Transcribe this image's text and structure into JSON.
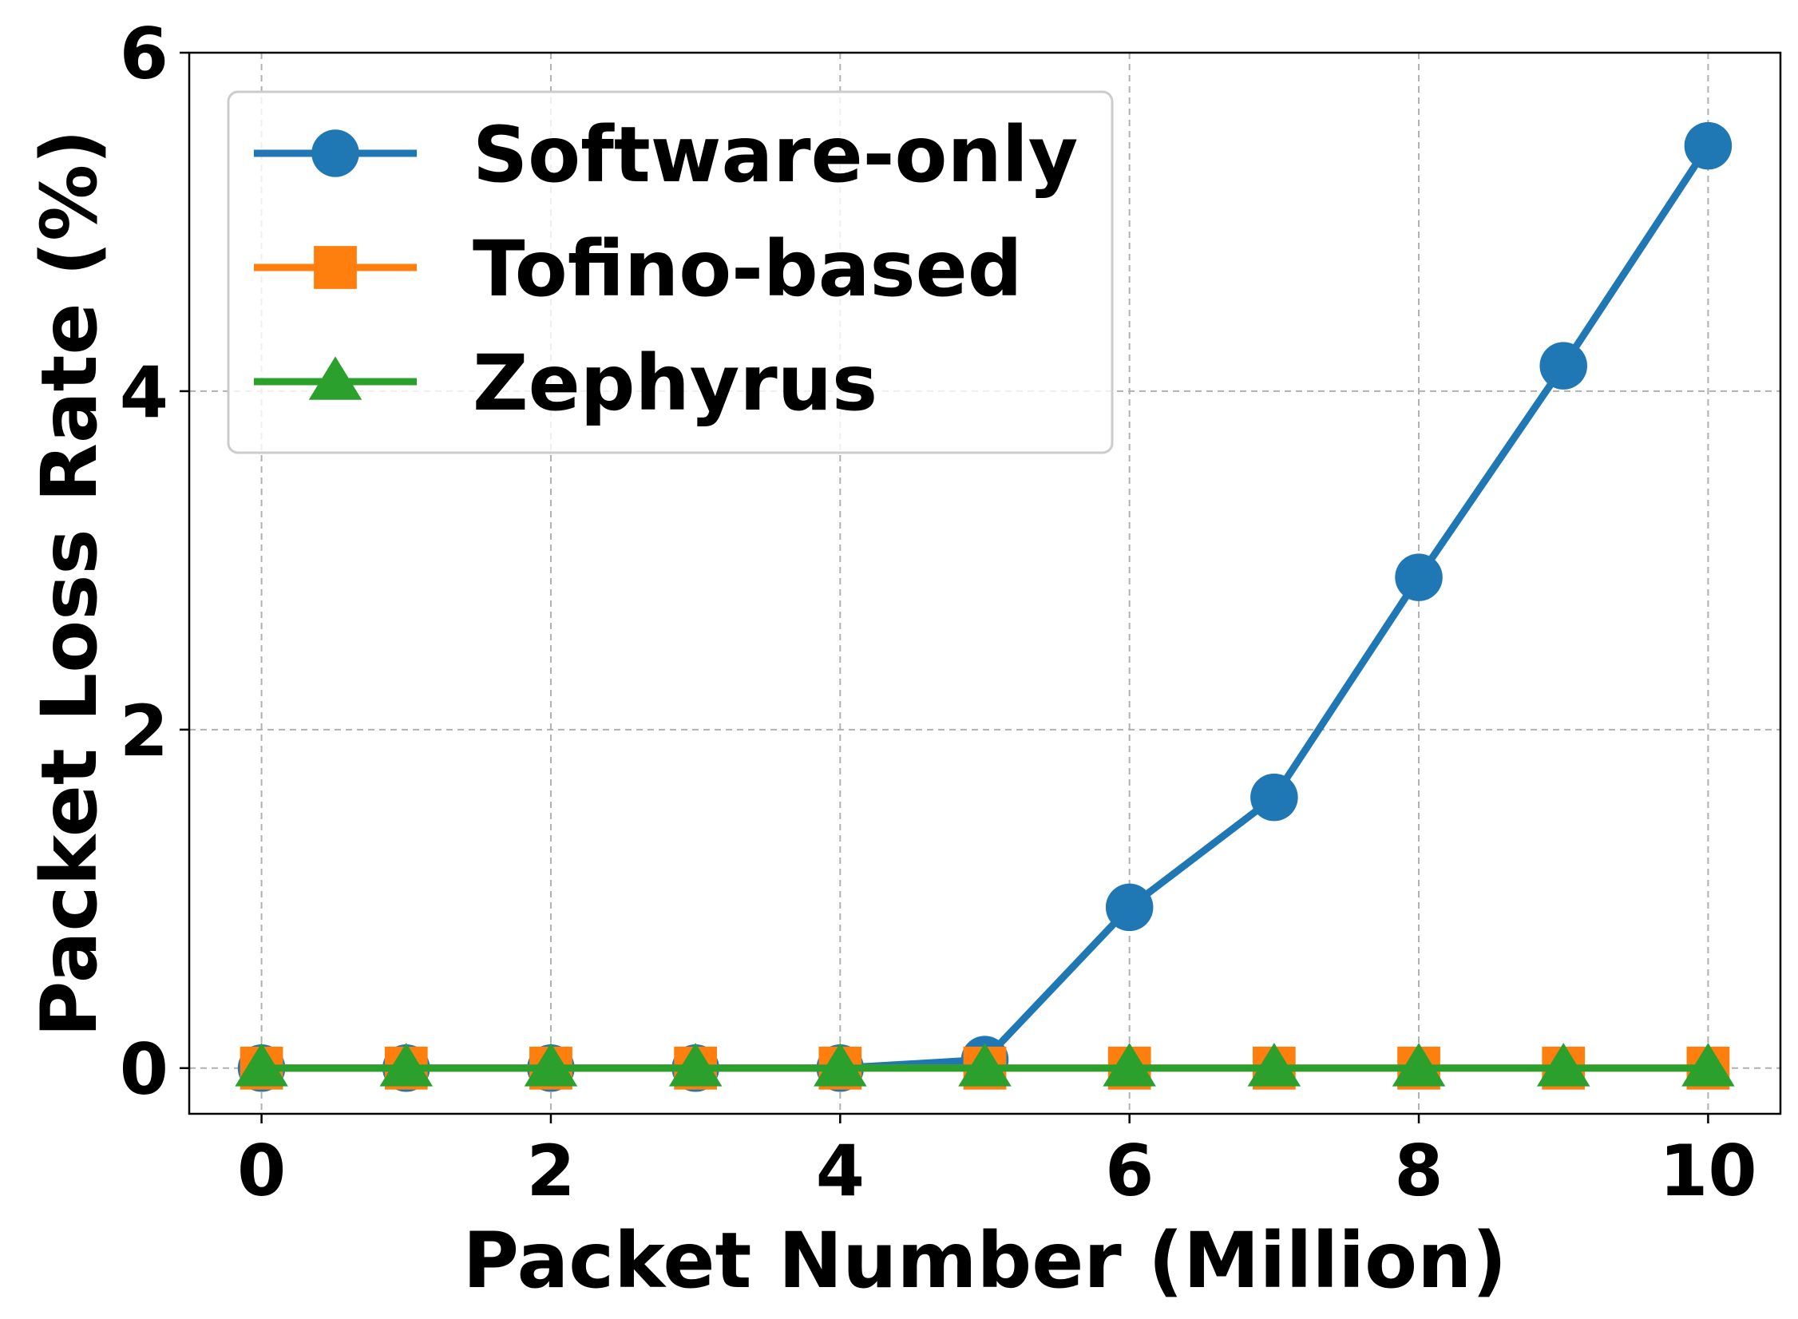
{
  "chart_data": {
    "type": "line",
    "xlabel": "Packet Number (Million)",
    "ylabel": "Packet Loss Rate (%)",
    "xlim": [
      -0.5,
      10.5
    ],
    "ylim": [
      -0.27,
      6
    ],
    "xticks": [
      0,
      2,
      4,
      6,
      8,
      10
    ],
    "yticks": [
      0,
      2,
      4,
      6
    ],
    "grid": true,
    "legend_position": "top-left",
    "x": [
      0,
      1,
      2,
      3,
      4,
      5,
      6,
      7,
      8,
      9,
      10
    ],
    "series": [
      {
        "name": "Software-only",
        "color": "#1f77b4",
        "marker": "circle",
        "values": [
          0,
          0,
          0,
          0,
          0,
          0.05,
          0.95,
          1.6,
          2.9,
          4.15,
          5.45
        ]
      },
      {
        "name": "Tofino-based",
        "color": "#ff7f0e",
        "marker": "square",
        "values": [
          0,
          0,
          0,
          0,
          0,
          0,
          0,
          0,
          0,
          0,
          0
        ]
      },
      {
        "name": "Zephyrus",
        "color": "#2ca02c",
        "marker": "triangle",
        "values": [
          0,
          0,
          0,
          0,
          0,
          0,
          0,
          0,
          0,
          0,
          0
        ]
      }
    ]
  }
}
